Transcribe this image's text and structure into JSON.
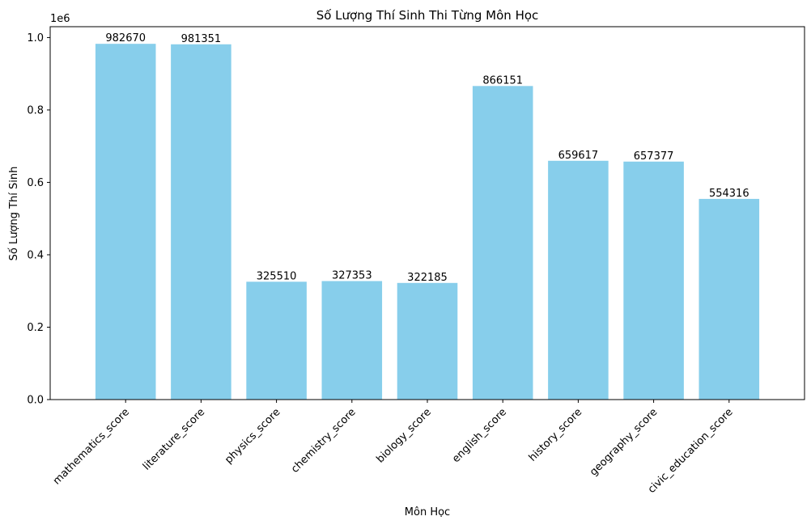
{
  "chart_data": {
    "type": "bar",
    "title": "Số Lượng Thí Sinh Thi Từng Môn Học",
    "xlabel": "Môn Học",
    "ylabel": "Số Lượng Thí Sinh",
    "y_offset_label": "1e6",
    "y_scale": 1000000,
    "ylim": [
      0,
      1.03
    ],
    "yticks": [
      0.0,
      0.2,
      0.4,
      0.6,
      0.8,
      1.0
    ],
    "ytick_labels": [
      "0.0",
      "0.2",
      "0.4",
      "0.6",
      "0.8",
      "1.0"
    ],
    "grid": false,
    "legend": "none",
    "x_tick_rotation_deg": 45,
    "bar_color": "#87CEEB",
    "categories": [
      "mathematics_score",
      "literature_score",
      "physics_score",
      "chemistry_score",
      "biology_score",
      "english_score",
      "history_score",
      "geography_score",
      "civic_education_score"
    ],
    "values": [
      982670,
      981351,
      325510,
      327353,
      322185,
      866151,
      659617,
      657377,
      554316
    ],
    "data_labels": [
      "982670",
      "981351",
      "325510",
      "327353",
      "322185",
      "866151",
      "659617",
      "657377",
      "554316"
    ]
  }
}
